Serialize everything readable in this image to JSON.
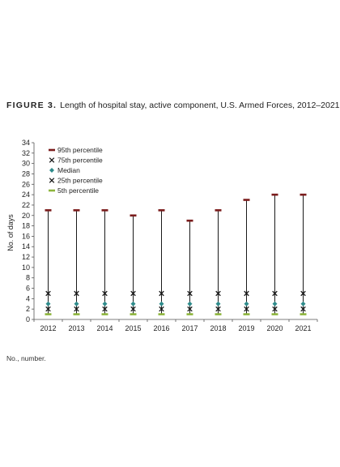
{
  "figure": {
    "label": "FIGURE 3.",
    "title": "Length of hospital stay, active component, U.S. Armed Forces, 2012–2021"
  },
  "footnote": "No., number.",
  "chart_data": {
    "type": "scatter",
    "ylabel": "No. of days",
    "xlabel": "",
    "ylim": [
      0,
      34
    ],
    "ytick_step": 2,
    "categories": [
      "2012",
      "2013",
      "2014",
      "2015",
      "2016",
      "2017",
      "2018",
      "2019",
      "2020",
      "2021"
    ],
    "legend_position": "top-left",
    "series": [
      {
        "name": "95th percentile",
        "marker": "dash",
        "color": "#7b1c1c",
        "values": [
          21,
          21,
          21,
          20,
          21,
          19,
          21,
          23,
          24,
          24
        ]
      },
      {
        "name": "75th percentile",
        "marker": "x",
        "color": "#1a1a1a",
        "values": [
          5,
          5,
          5,
          5,
          5,
          5,
          5,
          5,
          5,
          5
        ]
      },
      {
        "name": "Median",
        "marker": "diamond",
        "color": "#2e8b8b",
        "values": [
          3,
          3,
          3,
          3,
          3,
          3,
          3,
          3,
          3,
          3
        ]
      },
      {
        "name": "25th percentile",
        "marker": "x",
        "color": "#1a1a1a",
        "values": [
          2,
          2,
          2,
          2,
          2,
          2,
          2,
          2,
          2,
          2
        ]
      },
      {
        "name": "5th percentile",
        "marker": "dash",
        "color": "#8db53c",
        "values": [
          1,
          1,
          1,
          1,
          1,
          1,
          1,
          1,
          1,
          1
        ]
      }
    ]
  }
}
